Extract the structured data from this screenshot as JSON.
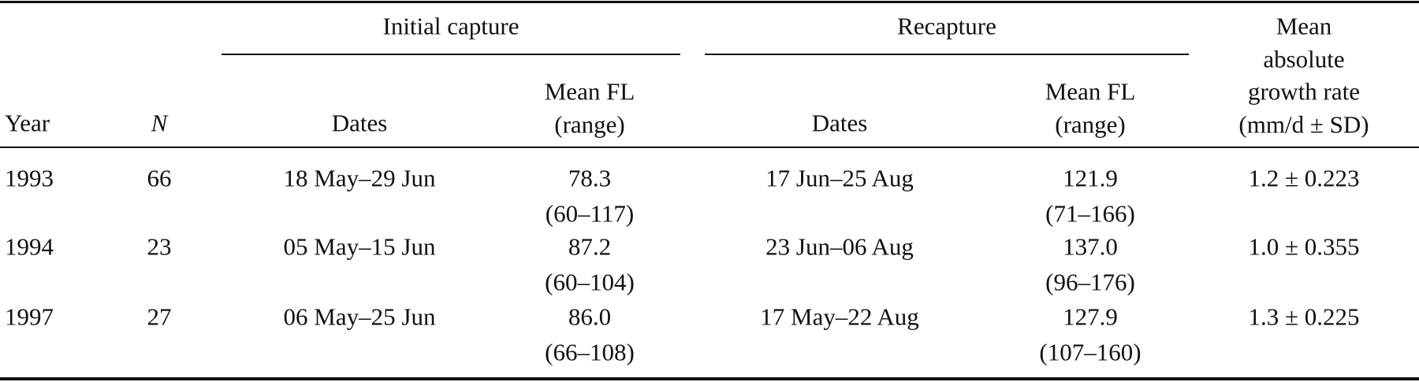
{
  "header": {
    "year": "Year",
    "n": "N",
    "groups": [
      "Initial capture",
      "Recapture"
    ],
    "dates": "Dates",
    "mean_fl": [
      "Mean FL",
      "(range)"
    ],
    "growth": [
      "Mean",
      "absolute",
      "growth rate",
      "(mm/d ± SD)"
    ]
  },
  "table": {
    "rows": [
      {
        "year": "1993",
        "n": "66",
        "initial": {
          "dates": "18 May–29 Jun",
          "mean": "78.3",
          "range": "(60–117)"
        },
        "recapture": {
          "dates": "17 Jun–25 Aug",
          "mean": "121.9",
          "range": "(71–166)"
        },
        "growth": "1.2 ± 0.223"
      },
      {
        "year": "1994",
        "n": "23",
        "initial": {
          "dates": "05 May–15 Jun",
          "mean": "87.2",
          "range": "(60–104)"
        },
        "recapture": {
          "dates": "23 Jun–06 Aug",
          "mean": "137.0",
          "range": "(96–176)"
        },
        "growth": "1.0 ± 0.355"
      },
      {
        "year": "1997",
        "n": "27",
        "initial": {
          "dates": "06 May–25 Jun",
          "mean": "86.0",
          "range": "(66–108)"
        },
        "recapture": {
          "dates": "17 May–22 Aug",
          "mean": "127.9",
          "range": "(107–160)"
        },
        "growth": "1.3 ± 0.225"
      }
    ]
  }
}
